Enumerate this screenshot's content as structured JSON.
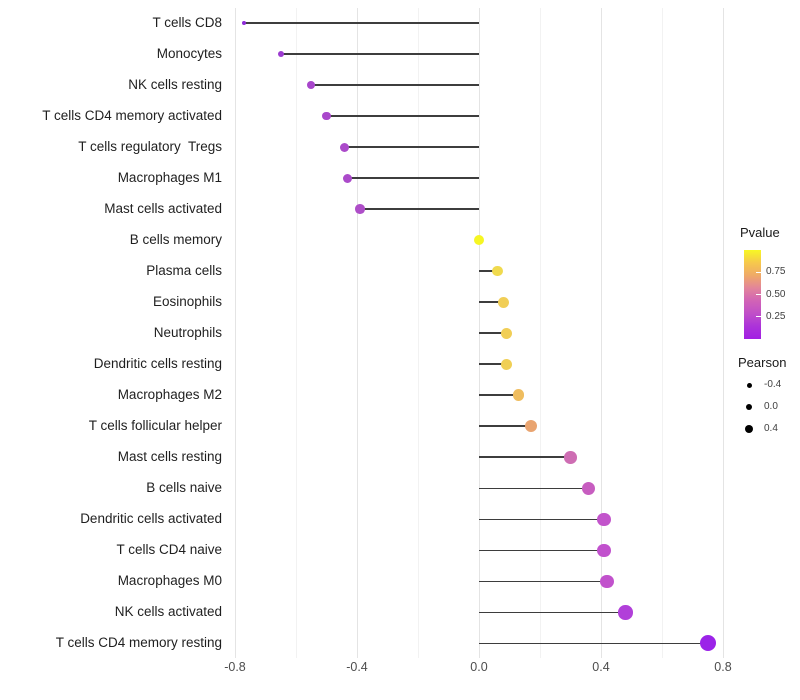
{
  "chart_data": {
    "type": "lollipop",
    "orientation": "horizontal",
    "xlabel": "",
    "ylabel": "",
    "x_ticks": [
      "-0.8",
      "-0.4",
      "0.0",
      "0.4",
      "0.8"
    ],
    "x_tick_values": [
      -0.8,
      -0.4,
      0.0,
      0.4,
      0.8
    ],
    "xlim": [
      -0.81,
      0.83
    ],
    "grid": "on",
    "minor_grid_values": [
      -0.6,
      -0.2,
      0.2,
      0.6
    ],
    "stem_origin": 0.0,
    "rows": [
      {
        "label": "T cells CD8",
        "pearson": -0.77,
        "pvalue_approx": 0.08,
        "color": "#8E2BD8",
        "size": 4
      },
      {
        "label": "Monocytes",
        "pearson": -0.65,
        "pvalue_approx": 0.15,
        "color": "#9C3BD0",
        "size": 6.5
      },
      {
        "label": "NK cells resting",
        "pearson": -0.55,
        "pvalue_approx": 0.2,
        "color": "#A846CB",
        "size": 8
      },
      {
        "label": "T cells CD4 memory activated",
        "pearson": -0.5,
        "pvalue_approx": 0.22,
        "color": "#A948CB",
        "size": 8.5
      },
      {
        "label": "T cells regulatory  Tregs",
        "pearson": -0.44,
        "pvalue_approx": 0.24,
        "color": "#AB4ACA",
        "size": 9
      },
      {
        "label": "Macrophages M1",
        "pearson": -0.43,
        "pvalue_approx": 0.24,
        "color": "#AB4ACA",
        "size": 9
      },
      {
        "label": "Mast cells activated",
        "pearson": -0.39,
        "pvalue_approx": 0.27,
        "color": "#AE4EC8",
        "size": 9.5
      },
      {
        "label": "B cells memory",
        "pearson": 0.0,
        "pvalue_approx": 0.97,
        "color": "#F6F623",
        "size": 10
      },
      {
        "label": "Plasma cells",
        "pearson": 0.06,
        "pvalue_approx": 0.82,
        "color": "#F0DA4E",
        "size": 10.5
      },
      {
        "label": "Eosinophils",
        "pearson": 0.08,
        "pvalue_approx": 0.76,
        "color": "#F1CE56",
        "size": 11
      },
      {
        "label": "Neutrophils",
        "pearson": 0.09,
        "pvalue_approx": 0.76,
        "color": "#F1CE56",
        "size": 11
      },
      {
        "label": "Dendritic cells resting",
        "pearson": 0.09,
        "pvalue_approx": 0.76,
        "color": "#F0CF55",
        "size": 11
      },
      {
        "label": "Macrophages M2",
        "pearson": 0.13,
        "pvalue_approx": 0.68,
        "color": "#EFBD5F",
        "size": 11.5
      },
      {
        "label": "T cells follicular helper",
        "pearson": 0.17,
        "pvalue_approx": 0.58,
        "color": "#E9A470",
        "size": 12
      },
      {
        "label": "Mast cells resting",
        "pearson": 0.3,
        "pvalue_approx": 0.42,
        "color": "#CE6DB3",
        "size": 12.5
      },
      {
        "label": "B cells naive",
        "pearson": 0.36,
        "pvalue_approx": 0.32,
        "color": "#C75DC0",
        "size": 13
      },
      {
        "label": "Dendritic cells activated",
        "pearson": 0.41,
        "pvalue_approx": 0.28,
        "color": "#C254CB",
        "size": 13.5
      },
      {
        "label": "T cells CD4 naive",
        "pearson": 0.41,
        "pvalue_approx": 0.27,
        "color": "#C151CD",
        "size": 13.5
      },
      {
        "label": "Macrophages M0",
        "pearson": 0.42,
        "pvalue_approx": 0.27,
        "color": "#C152CC",
        "size": 13.5
      },
      {
        "label": "NK cells activated",
        "pearson": 0.48,
        "pvalue_approx": 0.17,
        "color": "#B13FD9",
        "size": 14.5
      },
      {
        "label": "T cells CD4 memory resting",
        "pearson": 0.75,
        "pvalue_approx": 0.05,
        "color": "#9B23E8",
        "size": 16
      }
    ],
    "stem_color": "#3d3d3d"
  },
  "legend_pvalue": {
    "title": "Pvalue",
    "tick_labels": [
      "0.75",
      "0.50",
      "0.25"
    ],
    "tick_values": [
      0.75,
      0.5,
      0.25
    ],
    "range": [
      0,
      1
    ],
    "gradient_top_to_bottom": [
      "#F7F824",
      "#F6C84C",
      "#EFA968",
      "#E2849B",
      "#D163B6",
      "#C04FC8",
      "#AC33D9",
      "#A21FE3"
    ]
  },
  "legend_pearson": {
    "title": "Pearson",
    "items": [
      {
        "label": "-0.4",
        "diameter": 5
      },
      {
        "label": "0.0",
        "diameter": 6.5
      },
      {
        "label": "0.4",
        "diameter": 8
      }
    ],
    "dot_color": "#000000"
  }
}
